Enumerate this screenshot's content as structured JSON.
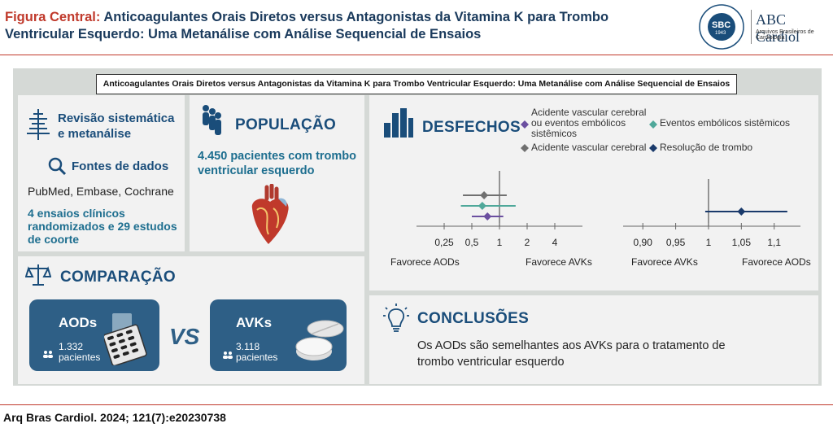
{
  "header": {
    "title_red": "Figura Central:",
    "title_line1": " Anticoagulantes Orais Diretos versus Antagonistas da Vitamina K para Trombo",
    "title_line2": "Ventricular Esquerdo: Uma Metanálise com Análise Sequencial de Ensaios",
    "logo_sbc": "SBC",
    "logo_ring_text": "SOCIEDADE BRASILEIRA DE CARDIOLOGIA",
    "logo_year": "1943",
    "abc_title": "ABC Cardiol",
    "abc_subtitle": "Arquivos Brasileiros de Cardiologia"
  },
  "banner": "Anticoagulantes Orais Diretos versus Antagonistas da Vitamina K para Trombo Ventricular Esquerdo: Uma Metanálise com Análise Sequencial de Ensaios",
  "review": {
    "title_line1": "Revisão sistemática",
    "title_line2": "e metanálise",
    "sources_title": "Fontes de dados",
    "sources": "PubMed, Embase, Cochrane",
    "studies_line1": "4 ensaios clínicos",
    "studies_line2": "randomizados e 29 estudos",
    "studies_line3": "de coorte"
  },
  "population": {
    "heading": "POPULAÇÃO",
    "text_line1": "4.450 pacientes com trombo",
    "text_line2": "ventricular esquerdo"
  },
  "outcomes": {
    "heading": "DESFECHOS",
    "legend": [
      {
        "label_lines": [
          "Acidente vascular cerebral",
          "ou eventos embólicos",
          "sistêmicos"
        ],
        "color": "#6b4fa0"
      },
      {
        "label_lines": [
          "Eventos embólicos sistêmicos"
        ],
        "color": "#4fa89a"
      },
      {
        "label_lines": [
          "Acidente vascular cerebral"
        ],
        "color": "#707070"
      },
      {
        "label_lines": [
          "Resolução de trombo"
        ],
        "color": "#1a3a6b"
      }
    ],
    "left_ticks": [
      "0,25",
      "0,5",
      "1",
      "2",
      "4"
    ],
    "left_favor_left": "Favorece AODs",
    "left_favor_right": "Favorece AVKs",
    "right_ticks": [
      "0,90",
      "0,95",
      "1",
      "1,05",
      "1,1"
    ],
    "right_favor_left": "Favorece AVKs",
    "right_favor_right": "Favorece AODs"
  },
  "chart_data": [
    {
      "type": "scatter",
      "scale": "log",
      "xlim": [
        0.125,
        8
      ],
      "xticks": [
        "0,25",
        "0,5",
        "1",
        "2",
        "4"
      ],
      "series": [
        {
          "name": "Acidente vascular cerebral",
          "estimate": 0.68,
          "ci": [
            0.4,
            1.2
          ],
          "color": "#707070"
        },
        {
          "name": "Eventos embólicos sistêmicos",
          "estimate": 0.65,
          "ci": [
            0.38,
            1.5
          ],
          "color": "#4fa89a"
        },
        {
          "name": "Acidente vascular cerebral ou eventos embólicos sistêmicos",
          "estimate": 0.74,
          "ci": [
            0.5,
            1.1
          ],
          "color": "#6b4fa0"
        }
      ]
    },
    {
      "type": "scatter",
      "scale": "linear",
      "xlim": [
        0.87,
        1.14
      ],
      "xticks": [
        "0,90",
        "0,95",
        "1",
        "1,05",
        "1,1"
      ],
      "series": [
        {
          "name": "Resolução de trombo",
          "estimate": 1.05,
          "ci": [
            0.995,
            1.12
          ],
          "color": "#1a3a6b"
        }
      ]
    }
  ],
  "comparison": {
    "heading": "COMPARAÇÃO",
    "aod_title": "AODs",
    "aod_count": "1.332",
    "aod_label": "pacientes",
    "vs": "VS",
    "avk_title": "AVKs",
    "avk_count": "3.118",
    "avk_label": "pacientes"
  },
  "conclusions": {
    "heading": "CONCLUSÕES",
    "text_line1": "Os AODs são semelhantes aos AVKs para o tratamento de",
    "text_line2": "trombo ventricular esquerdo"
  },
  "footer": {
    "citation": "Arq Bras Cardiol. 2024; 121(7):e20230738"
  }
}
